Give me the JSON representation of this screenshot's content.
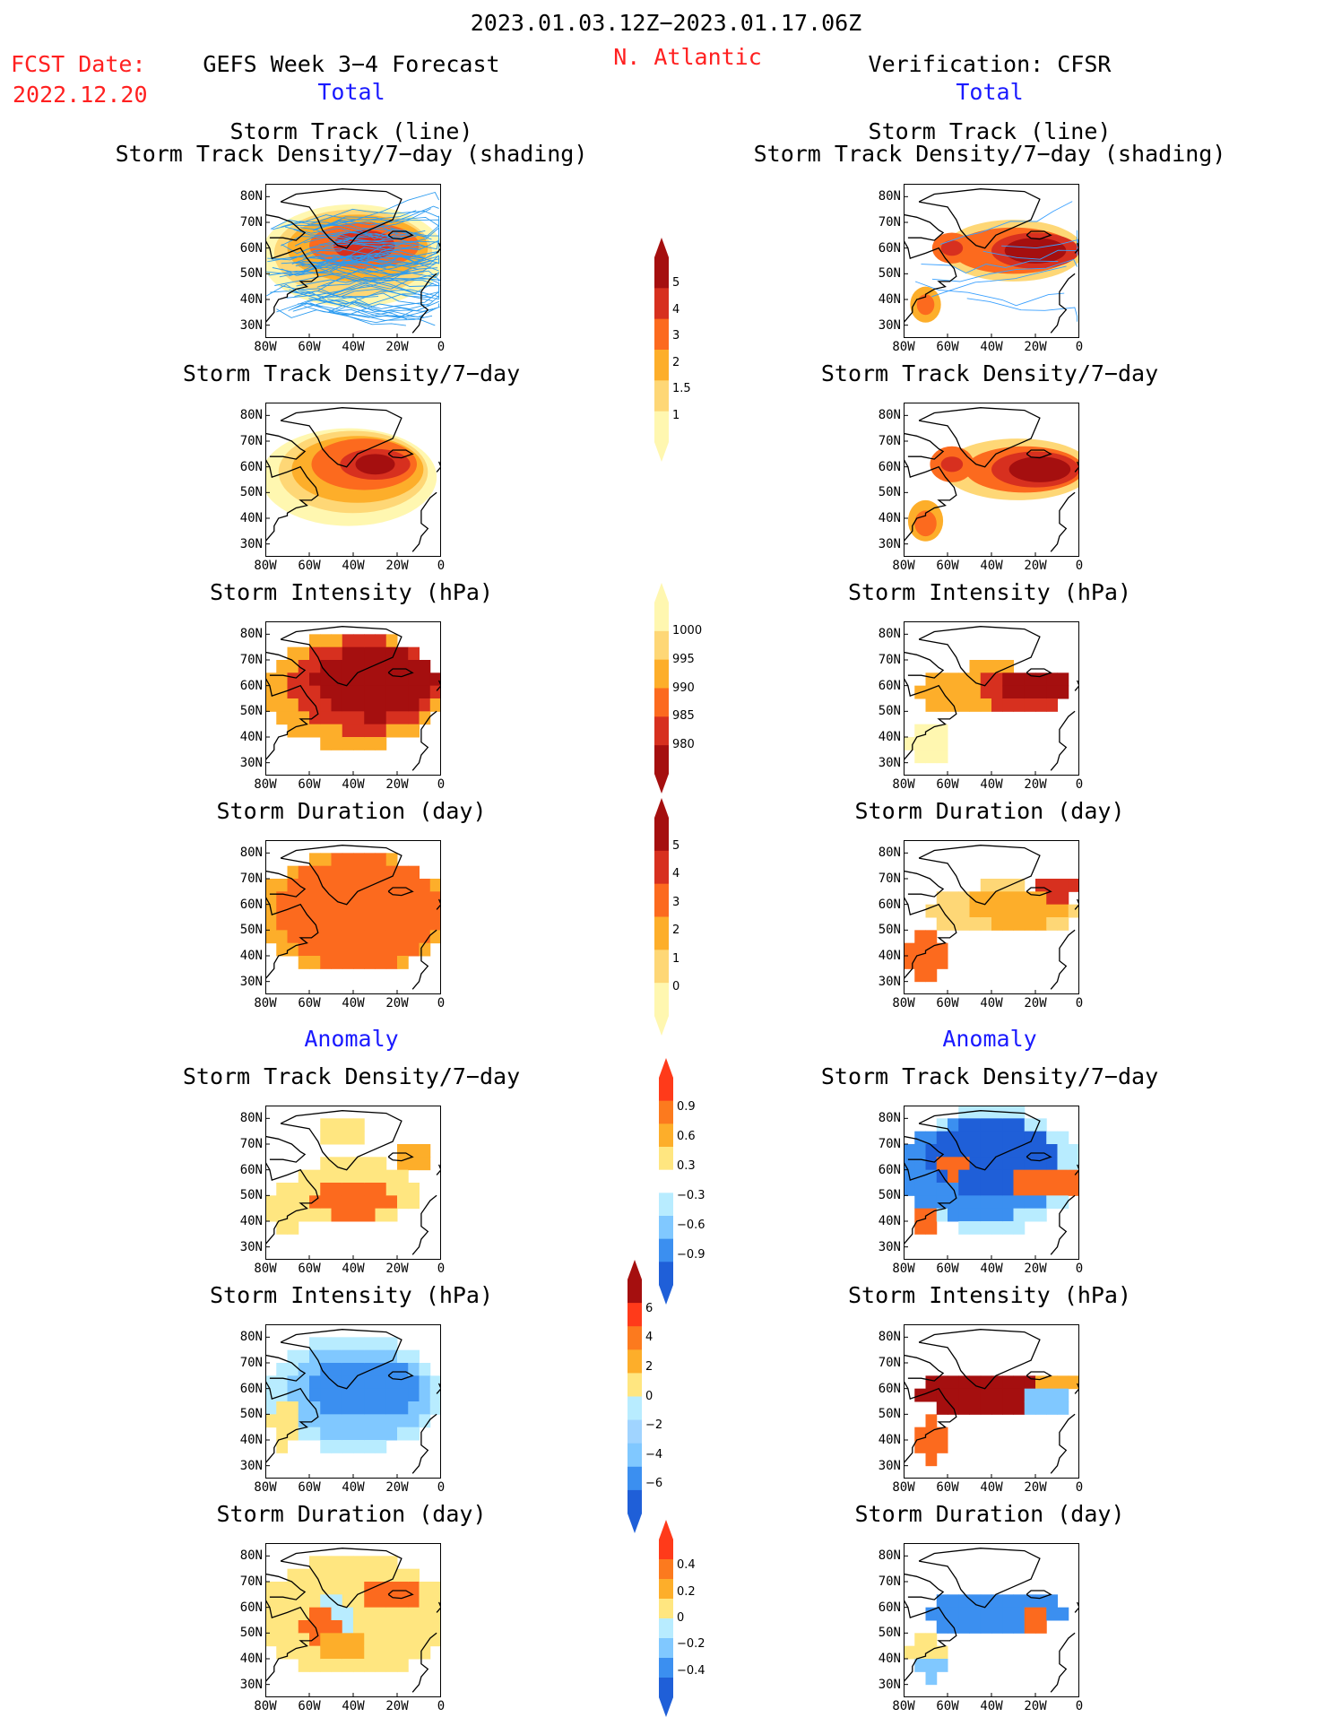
{
  "header": {
    "date_range": "2023.01.03.12Z−2023.01.17.06Z",
    "fcst_label": "FCST Date:",
    "fcst_date": "2022.12.20",
    "model": "GEFS Week 3−4 Forecast",
    "region": "N. Atlantic",
    "verification": "Verification: CFSR",
    "section_total": "Total",
    "section_anomaly": "Anomaly"
  },
  "panel_titles": {
    "track_line": "Storm Track (line)",
    "track_shading": "Storm Track Density/7−day (shading)",
    "density": "Storm Track Density/7−day",
    "intensity": "Storm Intensity (hPa)",
    "duration": "Storm Duration (day)"
  },
  "axes": {
    "lat_ticks": [
      "80N",
      "70N",
      "60N",
      "50N",
      "40N",
      "30N"
    ],
    "lon_ticks": [
      "80W",
      "60W",
      "40W",
      "20W",
      "0"
    ]
  },
  "colorbars": {
    "density_total": {
      "ticks": [
        "5",
        "4",
        "3",
        "2",
        "1.5",
        "1"
      ],
      "colors": [
        "#a50f0f",
        "#d7301f",
        "#fc6a1e",
        "#fdae2a",
        "#fed776",
        "#fff7b0"
      ]
    },
    "intensity_total": {
      "ticks": [
        "1000",
        "995",
        "990",
        "985",
        "980"
      ],
      "colors": [
        "#fff7b0",
        "#fed776",
        "#fdae2a",
        "#fc6a1e",
        "#d7301f",
        "#a50f0f"
      ]
    },
    "duration_total": {
      "ticks": [
        "5",
        "4",
        "3",
        "2",
        "1",
        "0"
      ],
      "colors": [
        "#a50f0f",
        "#d7301f",
        "#fc6a1e",
        "#fdae2a",
        "#fed776",
        "#fff7b0"
      ]
    },
    "density_anom": {
      "ticks": [
        "0.9",
        "0.6",
        "0.3",
        "−0.3",
        "−0.6",
        "−0.9"
      ],
      "colors": [
        "#ff3a1a",
        "#fc7a1e",
        "#fdae2a",
        "#ffe680",
        "#ffffff",
        "#b8ecff",
        "#80c8ff",
        "#3b8ff0",
        "#1f5fd8"
      ]
    },
    "intensity_anom": {
      "ticks": [
        "6",
        "4",
        "2",
        "0",
        "−2",
        "−4",
        "−6"
      ],
      "colors": [
        "#a50f0f",
        "#ff3a1a",
        "#fc7a1e",
        "#fdae2a",
        "#ffe680",
        "#b8ecff",
        "#a0d4ff",
        "#80c8ff",
        "#3b8ff0",
        "#1f5fd8"
      ]
    },
    "duration_anom": {
      "ticks": [
        "0.4",
        "0.2",
        "0",
        "−0.2",
        "−0.4"
      ],
      "colors": [
        "#ff3a1a",
        "#fc7a1e",
        "#fdae2a",
        "#ffe680",
        "#b8ecff",
        "#80c8ff",
        "#3b8ff0",
        "#1f5fd8"
      ]
    }
  },
  "chart_data": [
    {
      "type": "heatmap",
      "panel": "gefs-total-track",
      "title": "Storm Track (line) / Storm Track Density/7−day (shading)",
      "xlim": [
        -80,
        0
      ],
      "ylim": [
        25,
        85
      ],
      "max_density_region": "55–65N, 20–45W",
      "peak_value": 5
    },
    {
      "type": "heatmap",
      "panel": "cfsr-total-track",
      "title": "Storm Track (line) / Storm Track Density/7−day (shading)",
      "xlim": [
        -80,
        0
      ],
      "ylim": [
        25,
        85
      ],
      "peaks": [
        {
          "lat": 58,
          "lon": -25,
          "value": 5
        },
        {
          "lat": 60,
          "lon": -58,
          "value": 4
        },
        {
          "lat": 37,
          "lon": -70,
          "value": 4
        }
      ]
    },
    {
      "type": "heatmap",
      "panel": "gefs-total-density",
      "title": "Storm Track Density/7−day",
      "xlim": [
        -80,
        0
      ],
      "ylim": [
        25,
        85
      ],
      "peaks": [
        {
          "lat": 61,
          "lon": -30,
          "value": 5
        },
        {
          "lat": 60,
          "lon": -45,
          "value": 4
        }
      ]
    },
    {
      "type": "heatmap",
      "panel": "cfsr-total-density",
      "title": "Storm Track Density/7−day",
      "xlim": [
        -80,
        0
      ],
      "ylim": [
        25,
        85
      ],
      "peaks": [
        {
          "lat": 58,
          "lon": -25,
          "value": 5
        },
        {
          "lat": 61,
          "lon": -58,
          "value": 4
        },
        {
          "lat": 38,
          "lon": -70,
          "value": 4
        }
      ]
    },
    {
      "type": "heatmap",
      "panel": "gefs-total-intensity",
      "title": "Storm Intensity (hPa)",
      "xlim": [
        -80,
        0
      ],
      "ylim": [
        25,
        85
      ],
      "min_pressure_region": "50–72N, 0–60W",
      "min_value": 980
    },
    {
      "type": "heatmap",
      "panel": "cfsr-total-intensity",
      "title": "Storm Intensity (hPa)",
      "xlim": [
        -80,
        0
      ],
      "ylim": [
        25,
        85
      ],
      "min_pressure_region": "52–65N, 0–35W",
      "min_value": 980
    },
    {
      "type": "heatmap",
      "panel": "gefs-total-duration",
      "title": "Storm Duration (day)",
      "xlim": [
        -80,
        0
      ],
      "ylim": [
        25,
        85
      ],
      "typical_value": 3
    },
    {
      "type": "heatmap",
      "panel": "cfsr-total-duration",
      "title": "Storm Duration (day)",
      "xlim": [
        -80,
        0
      ],
      "ylim": [
        25,
        85
      ],
      "typical_value": 2
    },
    {
      "type": "heatmap",
      "panel": "gefs-anom-density",
      "title": "Storm Track Density/7−day",
      "xlim": [
        -80,
        0
      ],
      "ylim": [
        25,
        85
      ],
      "max_anomaly": 0.9
    },
    {
      "type": "heatmap",
      "panel": "cfsr-anom-density",
      "title": "Storm Track Density/7−day",
      "xlim": [
        -80,
        0
      ],
      "ylim": [
        25,
        85
      ],
      "range": [
        -0.9,
        0.9
      ]
    },
    {
      "type": "heatmap",
      "panel": "gefs-anom-intensity",
      "title": "Storm Intensity (hPa)",
      "xlim": [
        -80,
        0
      ],
      "ylim": [
        25,
        85
      ],
      "typical_value": -4
    },
    {
      "type": "heatmap",
      "panel": "cfsr-anom-intensity",
      "title": "Storm Intensity (hPa)",
      "xlim": [
        -80,
        0
      ],
      "ylim": [
        25,
        85
      ],
      "typical_value": 6
    },
    {
      "type": "heatmap",
      "panel": "gefs-anom-duration",
      "title": "Storm Duration (day)",
      "xlim": [
        -80,
        0
      ],
      "ylim": [
        25,
        85
      ],
      "range": [
        -0.4,
        0.4
      ]
    },
    {
      "type": "heatmap",
      "panel": "cfsr-anom-duration",
      "title": "Storm Duration (day)",
      "xlim": [
        -80,
        0
      ],
      "ylim": [
        25,
        85
      ],
      "typical_value": -0.4
    }
  ]
}
